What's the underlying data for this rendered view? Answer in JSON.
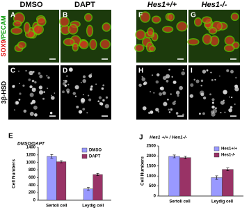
{
  "headers": [
    "DMSO",
    "DAPT",
    "Hes1+/+",
    "Hes1-/-"
  ],
  "side_labels": [
    "SOX9",
    "/PECAM",
    "3β-HSD"
  ],
  "panels": [
    "A",
    "B",
    "C",
    "D",
    "F",
    "G",
    "H",
    "I"
  ],
  "chart_data": [
    {
      "type": "bar",
      "label": "E",
      "title": "DMSO/DAPT",
      "ylabel": "Cell Numbers",
      "categories": [
        "Sertoli cell",
        "Leydig cell"
      ],
      "series": [
        {
          "name": "DMSO",
          "color": "#9999ff",
          "values": [
            1160,
            300
          ],
          "errors": [
            50,
            40
          ]
        },
        {
          "name": "DAPT",
          "color": "#993366",
          "values": [
            1020,
            680
          ],
          "errors": [
            30,
            30
          ]
        }
      ],
      "ylim": [
        0,
        1400
      ],
      "yticks": [
        0,
        200,
        400,
        600,
        800,
        1000,
        1200,
        1400
      ],
      "grid": false,
      "legend": "upper right"
    },
    {
      "type": "bar",
      "label": "J",
      "title": "Hes1 +/+ / Hes1-/-",
      "ylabel": "Cell Numbers",
      "categories": [
        "Sertoli cell",
        "Leydig cell"
      ],
      "series": [
        {
          "name": "Hes1+/+",
          "color": "#9999ff",
          "values": [
            1980,
            920
          ],
          "errors": [
            70,
            90
          ]
        },
        {
          "name": "Hes1-/-",
          "color": "#993366",
          "values": [
            1920,
            1330
          ],
          "errors": [
            60,
            70
          ]
        }
      ],
      "ylim": [
        0,
        2500
      ],
      "yticks": [
        0,
        500,
        1000,
        1500,
        2000,
        2500
      ],
      "grid": false,
      "legend": "upper right"
    }
  ]
}
